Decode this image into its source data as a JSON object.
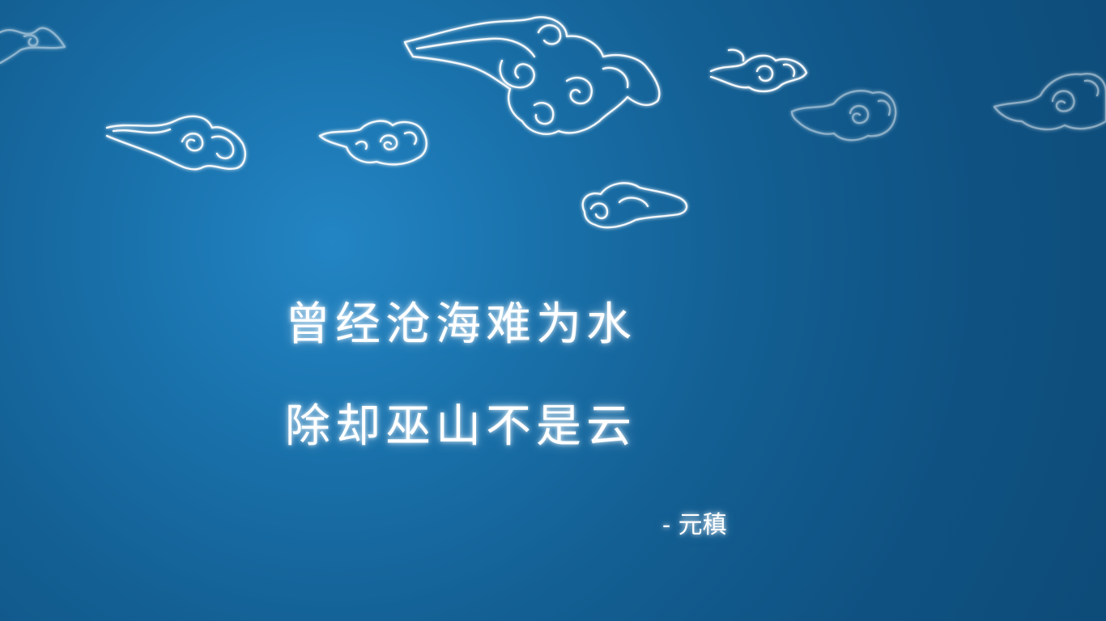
{
  "poem": {
    "line1": "曾经沧海难为水",
    "line2": "除却巫山不是云",
    "author": "- 元稹"
  },
  "colors": {
    "background_center": "#2385c4",
    "background_edge": "#0d4b78",
    "text": "#ffffff",
    "cloud_stroke": "#f2f7fb"
  },
  "decoration": {
    "cloud_icon": "auspicious-cloud-icon"
  }
}
